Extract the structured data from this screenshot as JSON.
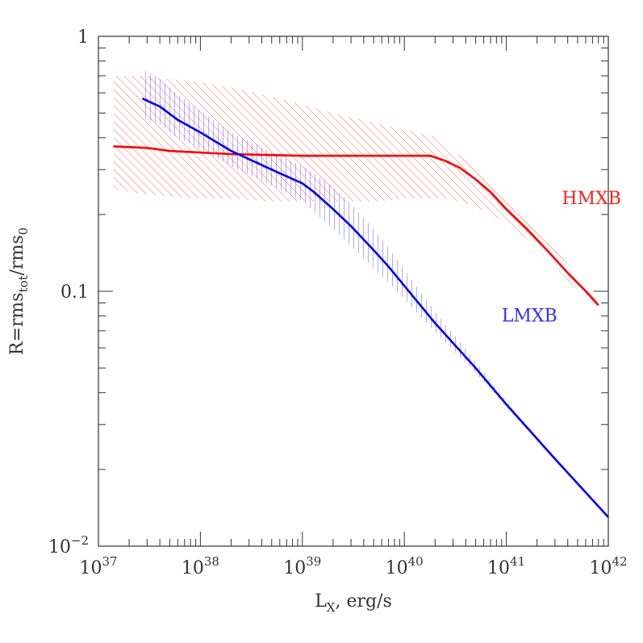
{
  "chart_data": {
    "type": "line",
    "title": "",
    "x_scale": "log",
    "y_scale": "log",
    "xlim": [
      1e+37,
      1e+42
    ],
    "ylim": [
      0.01,
      1
    ],
    "grid": false,
    "xlabel": {
      "main": "L",
      "sub": "X",
      "rest": ", erg/s"
    },
    "ylabel": {
      "p1": "R=rms",
      "sub1": "tot",
      "p2": "/rms",
      "sub2": "0"
    },
    "x_ticks": [
      {
        "base": "10",
        "exp": "37"
      },
      {
        "base": "10",
        "exp": "38"
      },
      {
        "base": "10",
        "exp": "39"
      },
      {
        "base": "10",
        "exp": "40"
      },
      {
        "base": "10",
        "exp": "41"
      },
      {
        "base": "10",
        "exp": "42"
      }
    ],
    "y_ticks": [
      {
        "base": "1",
        "exp": ""
      },
      {
        "base": "0.1",
        "exp": ""
      },
      {
        "base": "10",
        "exp": "−2"
      }
    ],
    "series": [
      {
        "name": "HMXB",
        "color": "#ff0000",
        "x": [
          1.4e+37,
          3e+37,
          5e+37,
          1e+38,
          2e+38,
          5e+38,
          1e+39,
          2e+39,
          5e+39,
          1e+40,
          1.8e+40,
          2.5e+40,
          3.5e+40,
          5e+40,
          7e+40,
          1e+41,
          1.6e+41,
          2.5e+41,
          4e+41,
          6e+41,
          8e+41
        ],
        "y": [
          0.37,
          0.365,
          0.355,
          0.35,
          0.345,
          0.342,
          0.34,
          0.34,
          0.34,
          0.34,
          0.34,
          0.325,
          0.305,
          0.275,
          0.245,
          0.21,
          0.175,
          0.145,
          0.118,
          0.1,
          0.088
        ],
        "y_low": [
          0.25,
          0.24,
          0.235,
          0.23,
          0.23,
          0.225,
          0.225,
          0.225,
          0.225,
          0.23,
          0.23,
          0.23,
          0.225,
          0.215,
          0.2,
          0.185,
          0.16,
          0.135,
          0.11,
          0.095,
          0.085
        ],
        "y_high": [
          0.7,
          0.7,
          0.68,
          0.66,
          0.63,
          0.58,
          0.54,
          0.5,
          0.46,
          0.43,
          0.41,
          0.38,
          0.34,
          0.3,
          0.27,
          0.235,
          0.195,
          0.16,
          0.128,
          0.106,
          0.092
        ]
      },
      {
        "name": "LMXB",
        "color": "#0000ee",
        "x": [
          2.7e+37,
          4e+37,
          6e+37,
          1e+38,
          2e+38,
          5e+38,
          1e+39,
          1.3e+39,
          2e+39,
          3e+39,
          5e+39,
          7e+39,
          1e+40,
          2e+40,
          5e+40,
          1e+41,
          3e+41,
          1e+42
        ],
        "y": [
          0.57,
          0.53,
          0.47,
          0.42,
          0.355,
          0.3,
          0.265,
          0.245,
          0.21,
          0.18,
          0.145,
          0.125,
          0.105,
          0.075,
          0.05,
          0.036,
          0.022,
          0.013
        ],
        "y_low": [
          0.48,
          0.45,
          0.4,
          0.36,
          0.31,
          0.26,
          0.225,
          0.205,
          0.175,
          0.15,
          0.123,
          0.108,
          0.093,
          0.069,
          0.048,
          0.035,
          0.022,
          0.013
        ],
        "y_high": [
          0.74,
          0.68,
          0.59,
          0.51,
          0.42,
          0.35,
          0.31,
          0.29,
          0.255,
          0.22,
          0.175,
          0.148,
          0.121,
          0.083,
          0.053,
          0.037,
          0.022,
          0.013
        ]
      }
    ],
    "annotations": [
      {
        "text": "HMXB",
        "x": 3.5e+41,
        "y": 0.22,
        "color": "#ff2020"
      },
      {
        "text": "LMXB",
        "x": 9e+40,
        "y": 0.076,
        "color": "#3030ff"
      }
    ],
    "colors": {
      "axis": "#333333",
      "background": "#ffffff"
    }
  }
}
